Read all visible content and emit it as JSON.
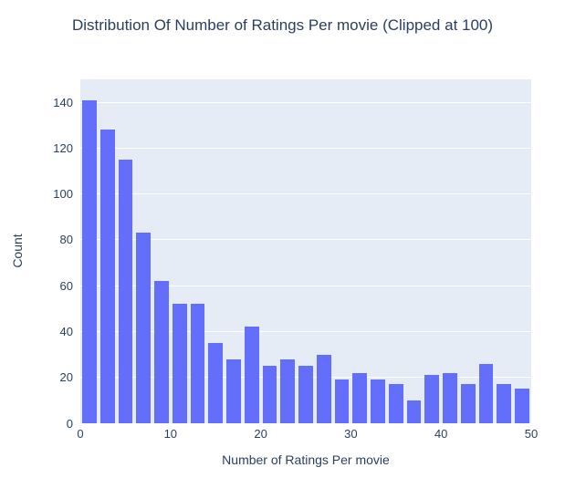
{
  "page": {
    "background": "#ffffff"
  },
  "chart_data": {
    "type": "bar",
    "subtype": "histogram",
    "title": "Distribution Of Number of Ratings Per movie (Clipped at 100)",
    "xlabel": "Number of Ratings Per movie",
    "ylabel": "Count",
    "bin_start": 0,
    "bin_width": 2,
    "bin_edges": [
      0,
      2,
      4,
      6,
      8,
      10,
      12,
      14,
      16,
      18,
      20,
      22,
      24,
      26,
      28,
      30,
      32,
      34,
      36,
      38,
      40,
      42,
      44,
      46,
      48,
      50
    ],
    "values": [
      141,
      128,
      115,
      83,
      62,
      52,
      52,
      35,
      28,
      42,
      25,
      28,
      25,
      30,
      19,
      22,
      19,
      17,
      10,
      21,
      22,
      17,
      26,
      17,
      15
    ],
    "xlim": [
      0,
      50
    ],
    "ylim": [
      0,
      150
    ],
    "x_ticks": [
      0,
      10,
      20,
      30,
      40,
      50
    ],
    "y_ticks": [
      0,
      20,
      40,
      60,
      80,
      100,
      120,
      140
    ],
    "grid": true,
    "legend_position": "none",
    "colors": {
      "bar": "#636EFA",
      "plot_background": "#E5ECF6",
      "grid": "#FFFFFF",
      "text": "#2a3f5f"
    }
  }
}
